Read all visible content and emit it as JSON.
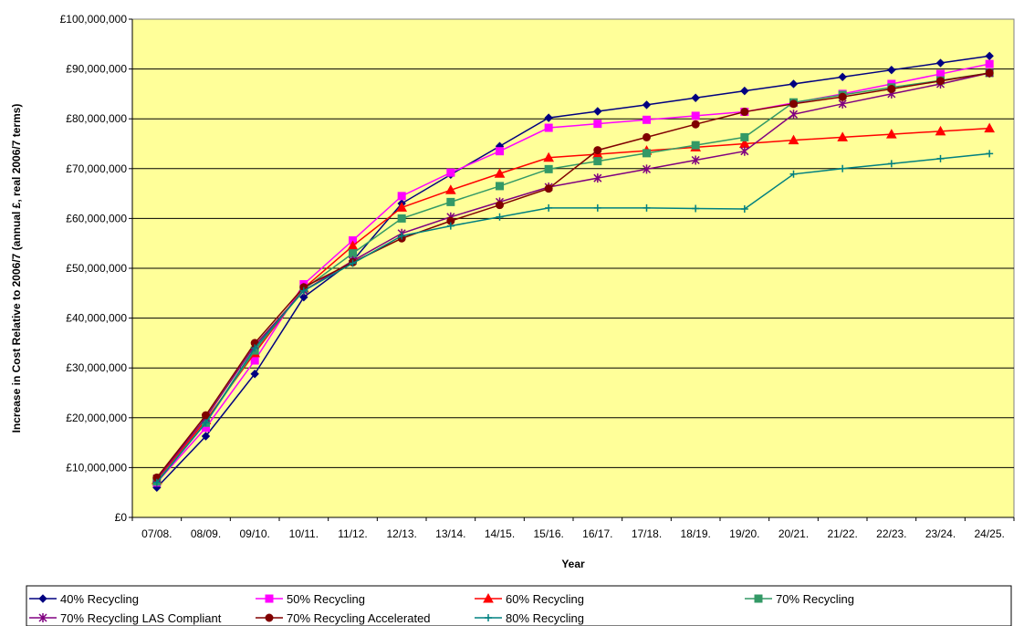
{
  "chart_data": {
    "type": "line",
    "title": "",
    "xlabel": "Year",
    "ylabel": "Increase in Cost Relative to 2006/7 (annual £, real 2006/7 terms)",
    "ylim": [
      0,
      100000000
    ],
    "y_ticks": [
      0,
      10000000,
      20000000,
      30000000,
      40000000,
      50000000,
      60000000,
      70000000,
      80000000,
      90000000,
      100000000
    ],
    "y_tick_labels": [
      "£0",
      "£10,000,000",
      "£20,000,000",
      "£30,000,000",
      "£40,000,000",
      "£50,000,000",
      "£60,000,000",
      "£70,000,000",
      "£80,000,000",
      "£90,000,000",
      "£100,000,000"
    ],
    "grid": "horizontal",
    "plot_background": "#ffff99",
    "legend_position": "bottom",
    "categories": [
      "07/08.",
      "08/09.",
      "09/10.",
      "10/11.",
      "11/12.",
      "12/13.",
      "13/14.",
      "14/15.",
      "15/16.",
      "16/17.",
      "17/18.",
      "18/19.",
      "19/20.",
      "20/21.",
      "21/22.",
      "22/23.",
      "23/24.",
      "24/25."
    ],
    "series": [
      {
        "name": "40% Recycling",
        "color": "#000080",
        "marker": "diamond",
        "values": [
          6000000,
          16300000,
          28800000,
          44200000,
          51500000,
          63000000,
          68800000,
          74500000,
          80200000,
          81500000,
          82800000,
          84200000,
          85600000,
          87000000,
          88400000,
          89800000,
          91200000,
          92600000
        ]
      },
      {
        "name": "50% Recycling",
        "color": "#ff00ff",
        "marker": "square",
        "values": [
          7000000,
          18000000,
          31500000,
          46800000,
          55600000,
          64500000,
          69200000,
          73500000,
          78200000,
          79000000,
          79800000,
          80600000,
          81400000,
          83200000,
          85000000,
          87000000,
          89000000,
          91000000
        ]
      },
      {
        "name": "60% Recycling",
        "color": "#ff0000",
        "marker": "triangle",
        "values": [
          7500000,
          19500000,
          33000000,
          46000000,
          54500000,
          62200000,
          65700000,
          69000000,
          72200000,
          72900000,
          73600000,
          74300000,
          75000000,
          75700000,
          76300000,
          76900000,
          77500000,
          78100000
        ]
      },
      {
        "name": "70% Recycling",
        "color": "#339966",
        "marker": "square",
        "values": [
          7200000,
          19000000,
          33500000,
          45800000,
          53000000,
          60000000,
          63300000,
          66500000,
          69900000,
          71500000,
          73100000,
          74700000,
          76300000,
          83300000,
          84800000,
          86300000,
          87700000,
          89200000
        ]
      },
      {
        "name": "70% Recycling LAS Compliant",
        "color": "#800080",
        "marker": "asterisk",
        "values": [
          7800000,
          20000000,
          34500000,
          45500000,
          51500000,
          57000000,
          60300000,
          63300000,
          66300000,
          68100000,
          69900000,
          71700000,
          73500000,
          80900000,
          83000000,
          85000000,
          87000000,
          89200000
        ]
      },
      {
        "name": "70% Recycling Accelerated",
        "color": "#800000",
        "marker": "circle",
        "values": [
          8000000,
          20500000,
          35000000,
          46200000,
          51200000,
          56000000,
          59500000,
          62700000,
          66000000,
          73700000,
          76300000,
          78900000,
          81400000,
          83000000,
          84400000,
          86000000,
          87600000,
          89200000
        ]
      },
      {
        "name": "80% Recycling",
        "color": "#008080",
        "marker": "plus",
        "values": [
          7000000,
          19000000,
          34000000,
          45500000,
          51000000,
          56500000,
          58500000,
          60300000,
          62100000,
          62100000,
          62100000,
          62000000,
          61900000,
          68900000,
          70000000,
          71000000,
          72000000,
          73000000
        ]
      }
    ]
  }
}
